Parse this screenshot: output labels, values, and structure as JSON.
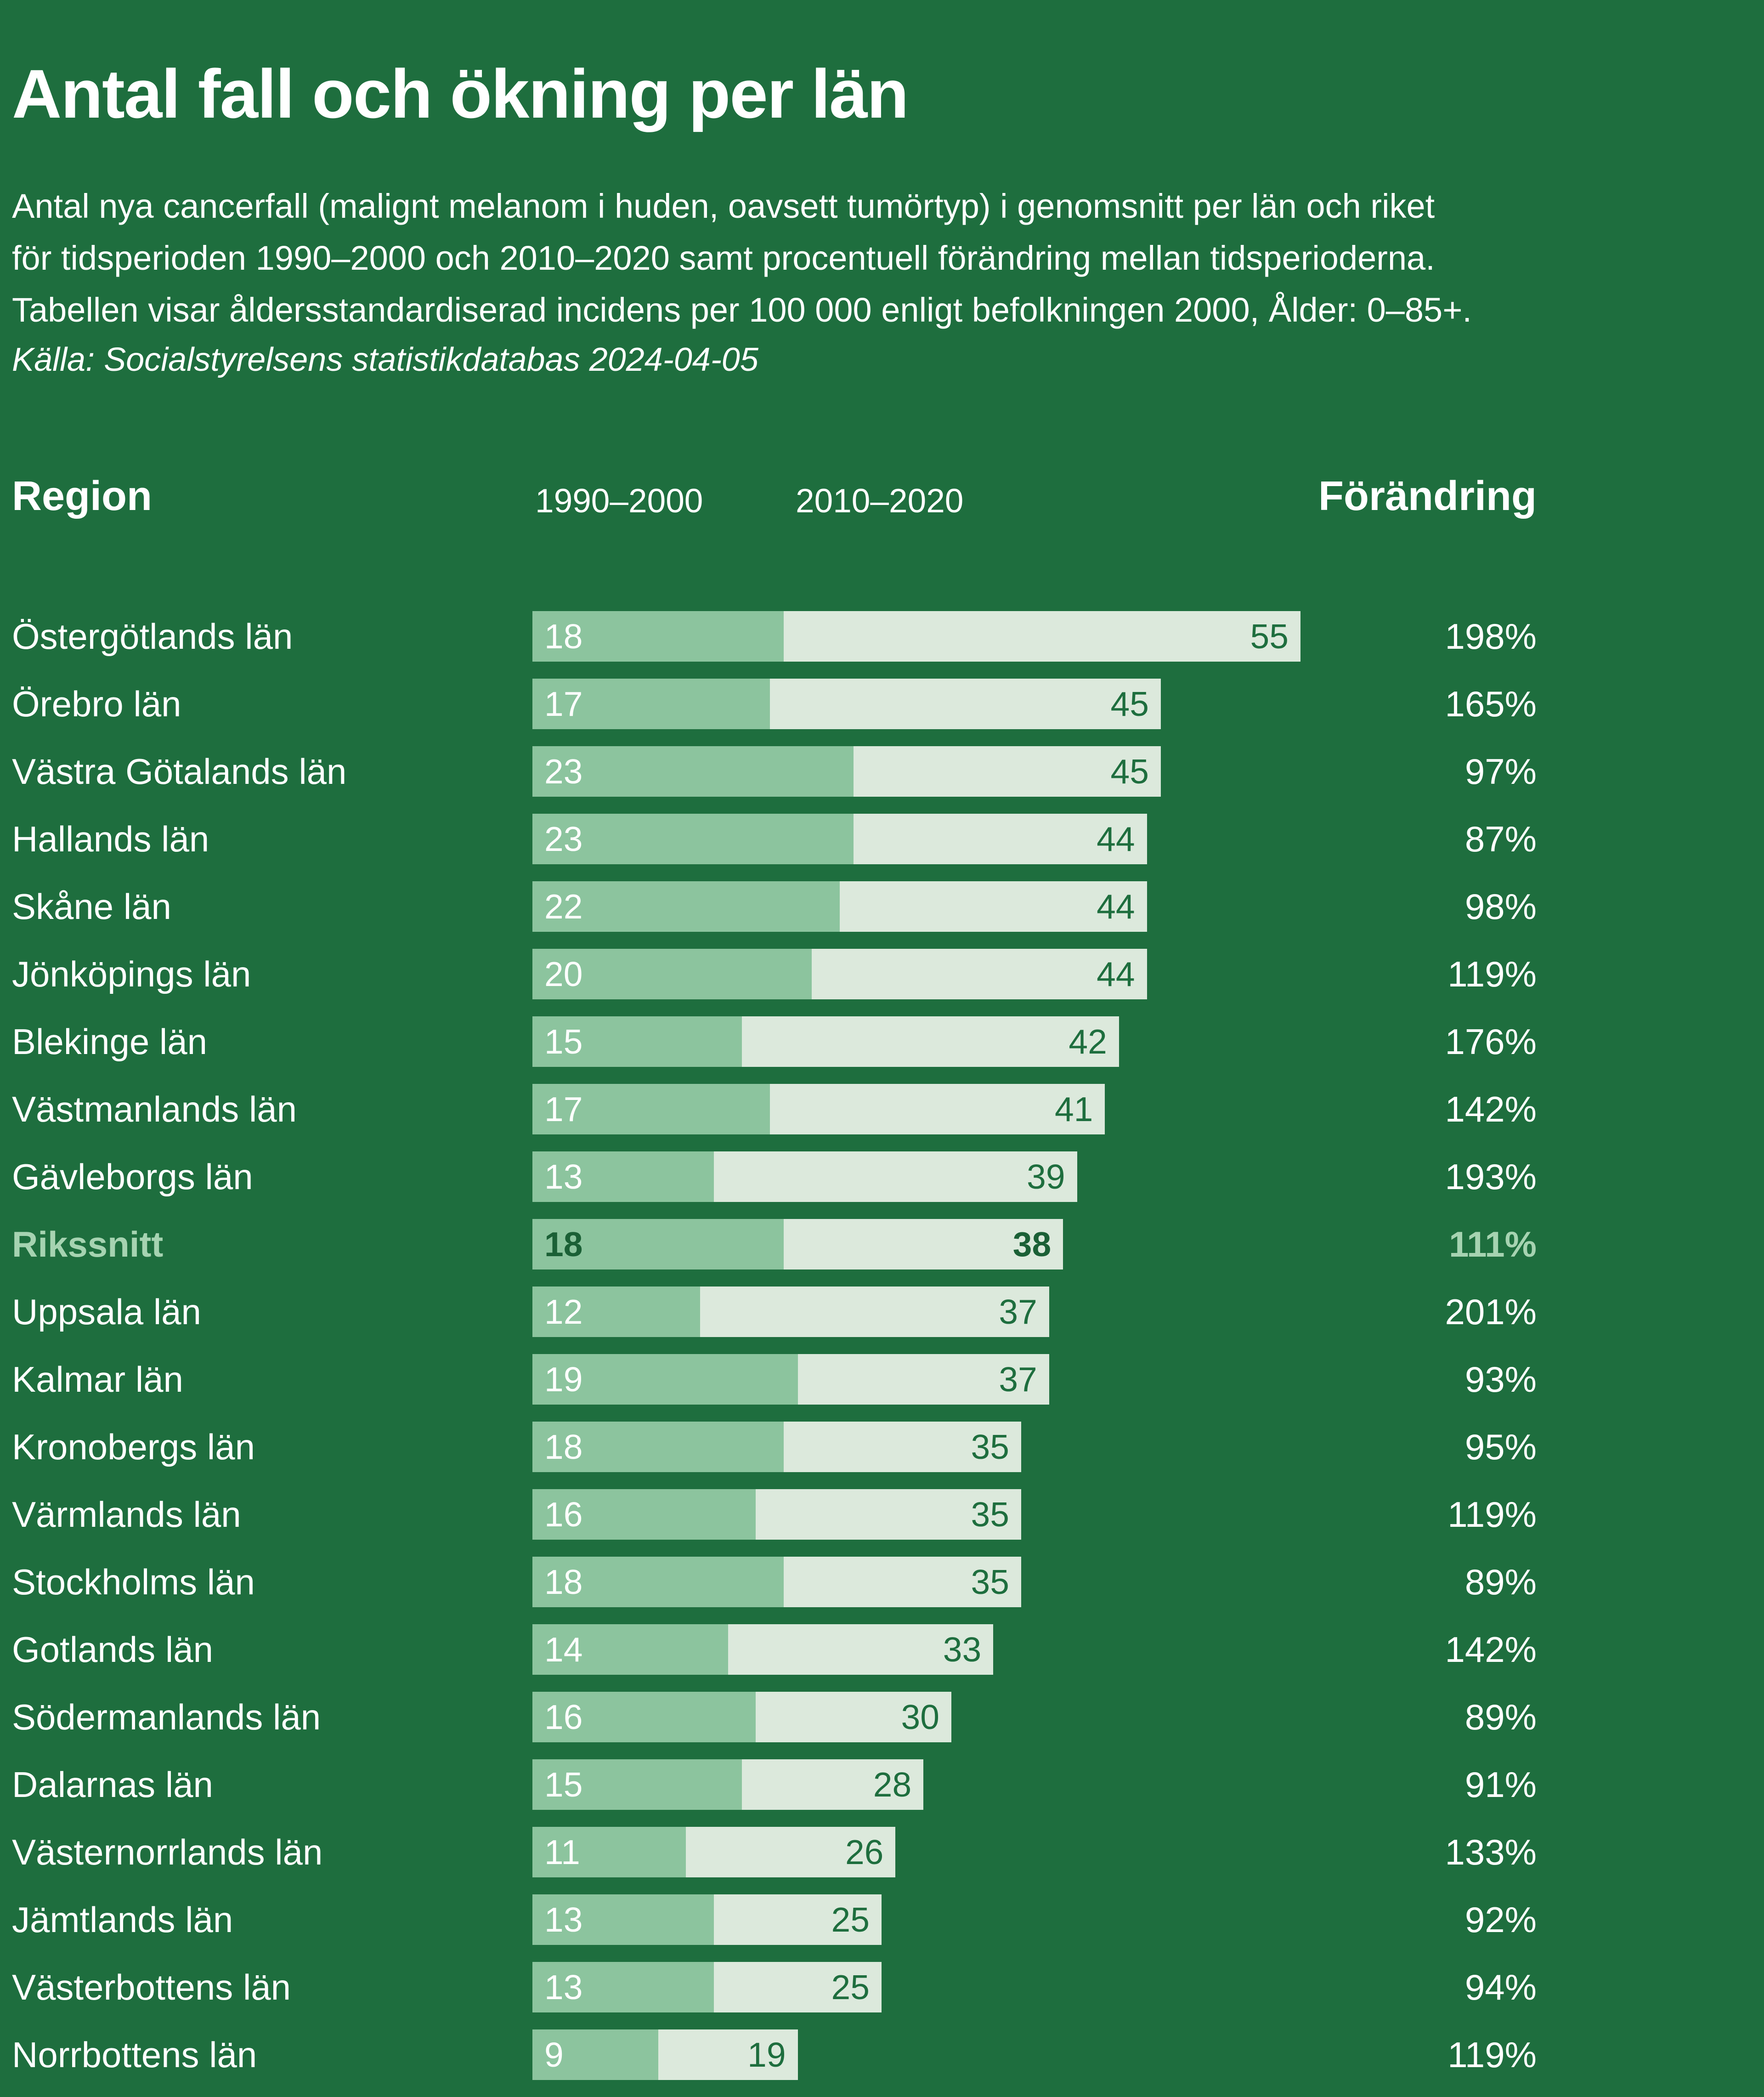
{
  "header": {
    "title": "Antal fall och ökning per län",
    "subtitle_lines": [
      "Antal nya cancerfall (malignt melanom i huden, oavsett tumörtyp) i genomsnitt per län och riket",
      "för tidsperioden 1990–2000 och 2010–2020 samt procentuell förändring mellan tidsperioderna.",
      "Tabellen visar åldersstandardiserad incidens per 100 000 enligt befolkningen 2000, Ålder: 0–85+."
    ],
    "source": "Källa: Socialstyrelsens statistikdatabas 2024-04-05"
  },
  "columns": {
    "region": "Region",
    "period1": "1990–2000",
    "period2": "2010–2020",
    "change": "Förändring"
  },
  "colors": {
    "background": "#1e6e3e",
    "bar_period1": "#8cc49e",
    "bar_period2": "#dce9dc",
    "text": "#ffffff",
    "bar_value_dark": "#1e6e3e",
    "highlight_text": "#a6d3b1"
  },
  "chart_data": {
    "type": "bar",
    "orientation": "horizontal",
    "title": "Antal fall och ökning per län",
    "subtitle": "Antal nya cancerfall (malignt melanom i huden, oavsett tumörtyp) i genomsnitt per län och riket för tidsperioden 1990–2000 och 2010–2020 samt procentuell förändring mellan tidsperioderna. Tabellen visar åldersstandardiserad incidens per 100 000 enligt befolkningen 2000, Ålder: 0–85+.",
    "source": "Källa: Socialstyrelsens statistikdatabas 2024-04-05",
    "legend_position": "none",
    "grid": false,
    "xlim": [
      0,
      55
    ],
    "categories": [
      "Östergötlands län",
      "Örebro län",
      "Västra Götalands län",
      "Hallands län",
      "Skåne län",
      "Jönköpings län",
      "Blekinge län",
      "Västmanlands län",
      "Gävleborgs län",
      "Rikssnitt",
      "Uppsala län",
      "Kalmar län",
      "Kronobergs län",
      "Värmlands län",
      "Stockholms län",
      "Gotlands län",
      "Södermanlands län",
      "Dalarnas län",
      "Västernorrlands län",
      "Jämtlands län",
      "Västerbottens län",
      "Norrbottens län"
    ],
    "series": [
      {
        "name": "1990–2000",
        "values": [
          18,
          17,
          23,
          23,
          22,
          20,
          15,
          17,
          13,
          18,
          12,
          19,
          18,
          16,
          18,
          14,
          16,
          15,
          11,
          13,
          13,
          9
        ]
      },
      {
        "name": "2010–2020",
        "values": [
          55,
          45,
          45,
          44,
          44,
          44,
          42,
          41,
          39,
          38,
          37,
          37,
          35,
          35,
          35,
          33,
          30,
          28,
          26,
          25,
          25,
          19
        ]
      }
    ],
    "change_labels": [
      "198%",
      "165%",
      "97%",
      "87%",
      "98%",
      "119%",
      "176%",
      "142%",
      "193%",
      "111%",
      "201%",
      "93%",
      "95%",
      "119%",
      "89%",
      "142%",
      "89%",
      "91%",
      "133%",
      "92%",
      "94%",
      "119%"
    ],
    "highlight_category": "Rikssnitt"
  }
}
